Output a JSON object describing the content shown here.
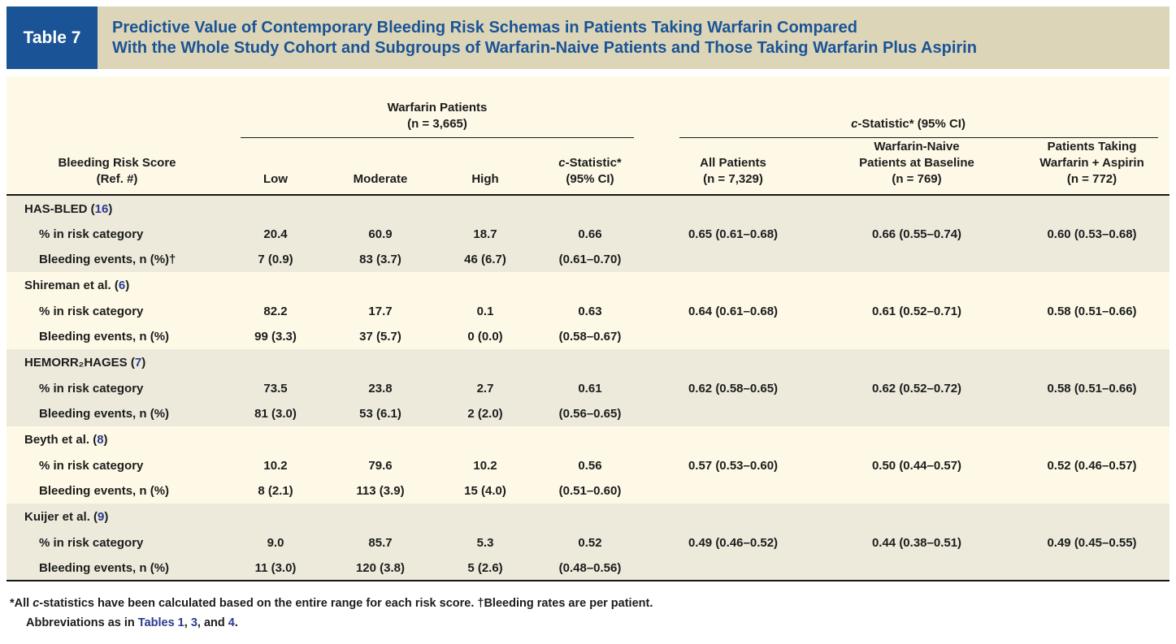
{
  "colors": {
    "header_blue": "#1a5496",
    "band_beige": "#ddd5b8",
    "table_cream": "#fdf9e6",
    "section_shade": "#edeadc",
    "link_blue": "#2a3b8f"
  },
  "header": {
    "label": "Table 7",
    "title_line1": "Predictive Value of Contemporary Bleeding Risk Schemas in Patients Taking Warfarin Compared",
    "title_line2": "With the Whole Study Cohort and Subgroups of Warfarin-Naive Patients and Those Taking Warfarin Plus Aspirin"
  },
  "table": {
    "groups": {
      "warfarin": {
        "line1": "Warfarin Patients",
        "line2": "(n = 3,665)"
      },
      "cstat": {
        "italic": "c",
        "rest": "-Statistic* (95% CI)"
      }
    },
    "columns": {
      "risk_score_line1": "Bleeding Risk Score",
      "risk_score_line2": "(Ref. #)",
      "low": "Low",
      "moderate": "Moderate",
      "high": "High",
      "cstat_italic": "c",
      "cstat_line1_rest": "-Statistic*",
      "cstat_line2": "(95% CI)",
      "all_line1": "All Patients",
      "all_line2": "(n = 7,329)",
      "naive_line1": "Warfarin-Naive",
      "naive_line2": "Patients at Baseline",
      "naive_line3": "(n = 769)",
      "aspirin_line1": "Patients Taking",
      "aspirin_line2": "Warfarin + Aspirin",
      "aspirin_line3": "(n = 772)"
    },
    "sections": [
      {
        "name": "HAS-BLED",
        "ref": "16",
        "shaded": true,
        "rows": [
          {
            "label": "% in risk category",
            "low": "20.4",
            "moderate": "60.9",
            "high": "18.7",
            "cstat": "0.66",
            "all": "0.65 (0.61–0.68)",
            "naive": "0.66 (0.55–0.74)",
            "aspirin": "0.60 (0.53–0.68)"
          },
          {
            "label": "Bleeding events, n (%)†",
            "low": "7 (0.9)",
            "moderate": "83 (3.7)",
            "high": "46 (6.7)",
            "cstat": "(0.61–0.70)",
            "all": "",
            "naive": "",
            "aspirin": ""
          }
        ]
      },
      {
        "name": "Shireman et al.",
        "ref": "6",
        "shaded": false,
        "rows": [
          {
            "label": "% in risk category",
            "low": "82.2",
            "moderate": "17.7",
            "high": "0.1",
            "cstat": "0.63",
            "all": "0.64 (0.61–0.68)",
            "naive": "0.61 (0.52–0.71)",
            "aspirin": "0.58 (0.51–0.66)"
          },
          {
            "label": "Bleeding events, n (%)",
            "low": "99 (3.3)",
            "moderate": "37 (5.7)",
            "high": "0 (0.0)",
            "cstat": "(0.58–0.67)",
            "all": "",
            "naive": "",
            "aspirin": ""
          }
        ]
      },
      {
        "name": "HEMORR₂HAGES",
        "ref": "7",
        "shaded": true,
        "rows": [
          {
            "label": "% in risk category",
            "low": "73.5",
            "moderate": "23.8",
            "high": "2.7",
            "cstat": "0.61",
            "all": "0.62 (0.58–0.65)",
            "naive": "0.62 (0.52–0.72)",
            "aspirin": "0.58 (0.51–0.66)"
          },
          {
            "label": "Bleeding events, n (%)",
            "low": "81 (3.0)",
            "moderate": "53 (6.1)",
            "high": "2 (2.0)",
            "cstat": "(0.56–0.65)",
            "all": "",
            "naive": "",
            "aspirin": ""
          }
        ]
      },
      {
        "name": "Beyth et al.",
        "ref": "8",
        "shaded": false,
        "rows": [
          {
            "label": "% in risk category",
            "low": "10.2",
            "moderate": "79.6",
            "high": "10.2",
            "cstat": "0.56",
            "all": "0.57 (0.53–0.60)",
            "naive": "0.50 (0.44–0.57)",
            "aspirin": "0.52 (0.46–0.57)"
          },
          {
            "label": "Bleeding events, n (%)",
            "low": "8 (2.1)",
            "moderate": "113 (3.9)",
            "high": "15 (4.0)",
            "cstat": "(0.51–0.60)",
            "all": "",
            "naive": "",
            "aspirin": ""
          }
        ]
      },
      {
        "name": "Kuijer et al.",
        "ref": "9",
        "shaded": true,
        "rows": [
          {
            "label": "% in risk category",
            "low": "9.0",
            "moderate": "85.7",
            "high": "5.3",
            "cstat": "0.52",
            "all": "0.49 (0.46–0.52)",
            "naive": "0.44 (0.38–0.51)",
            "aspirin": "0.49 (0.45–0.55)"
          },
          {
            "label": "Bleeding events, n (%)",
            "low": "11 (3.0)",
            "moderate": "120 (3.8)",
            "high": "5 (2.6)",
            "cstat": "(0.48–0.56)",
            "all": "",
            "naive": "",
            "aspirin": ""
          }
        ]
      }
    ]
  },
  "footnotes": {
    "line1_prefix": "*All ",
    "line1_italic": "c",
    "line1_rest": "-statistics have been calculated based on the entire range for each risk score. †Bleeding rates are per patient.",
    "line2_parts": [
      {
        "text": "Abbreviations as in ",
        "link": false
      },
      {
        "text": "Tables 1",
        "link": true
      },
      {
        "text": ", ",
        "link": false
      },
      {
        "text": "3",
        "link": true
      },
      {
        "text": ", and ",
        "link": false
      },
      {
        "text": "4",
        "link": true
      },
      {
        "text": ".",
        "link": false
      }
    ]
  }
}
